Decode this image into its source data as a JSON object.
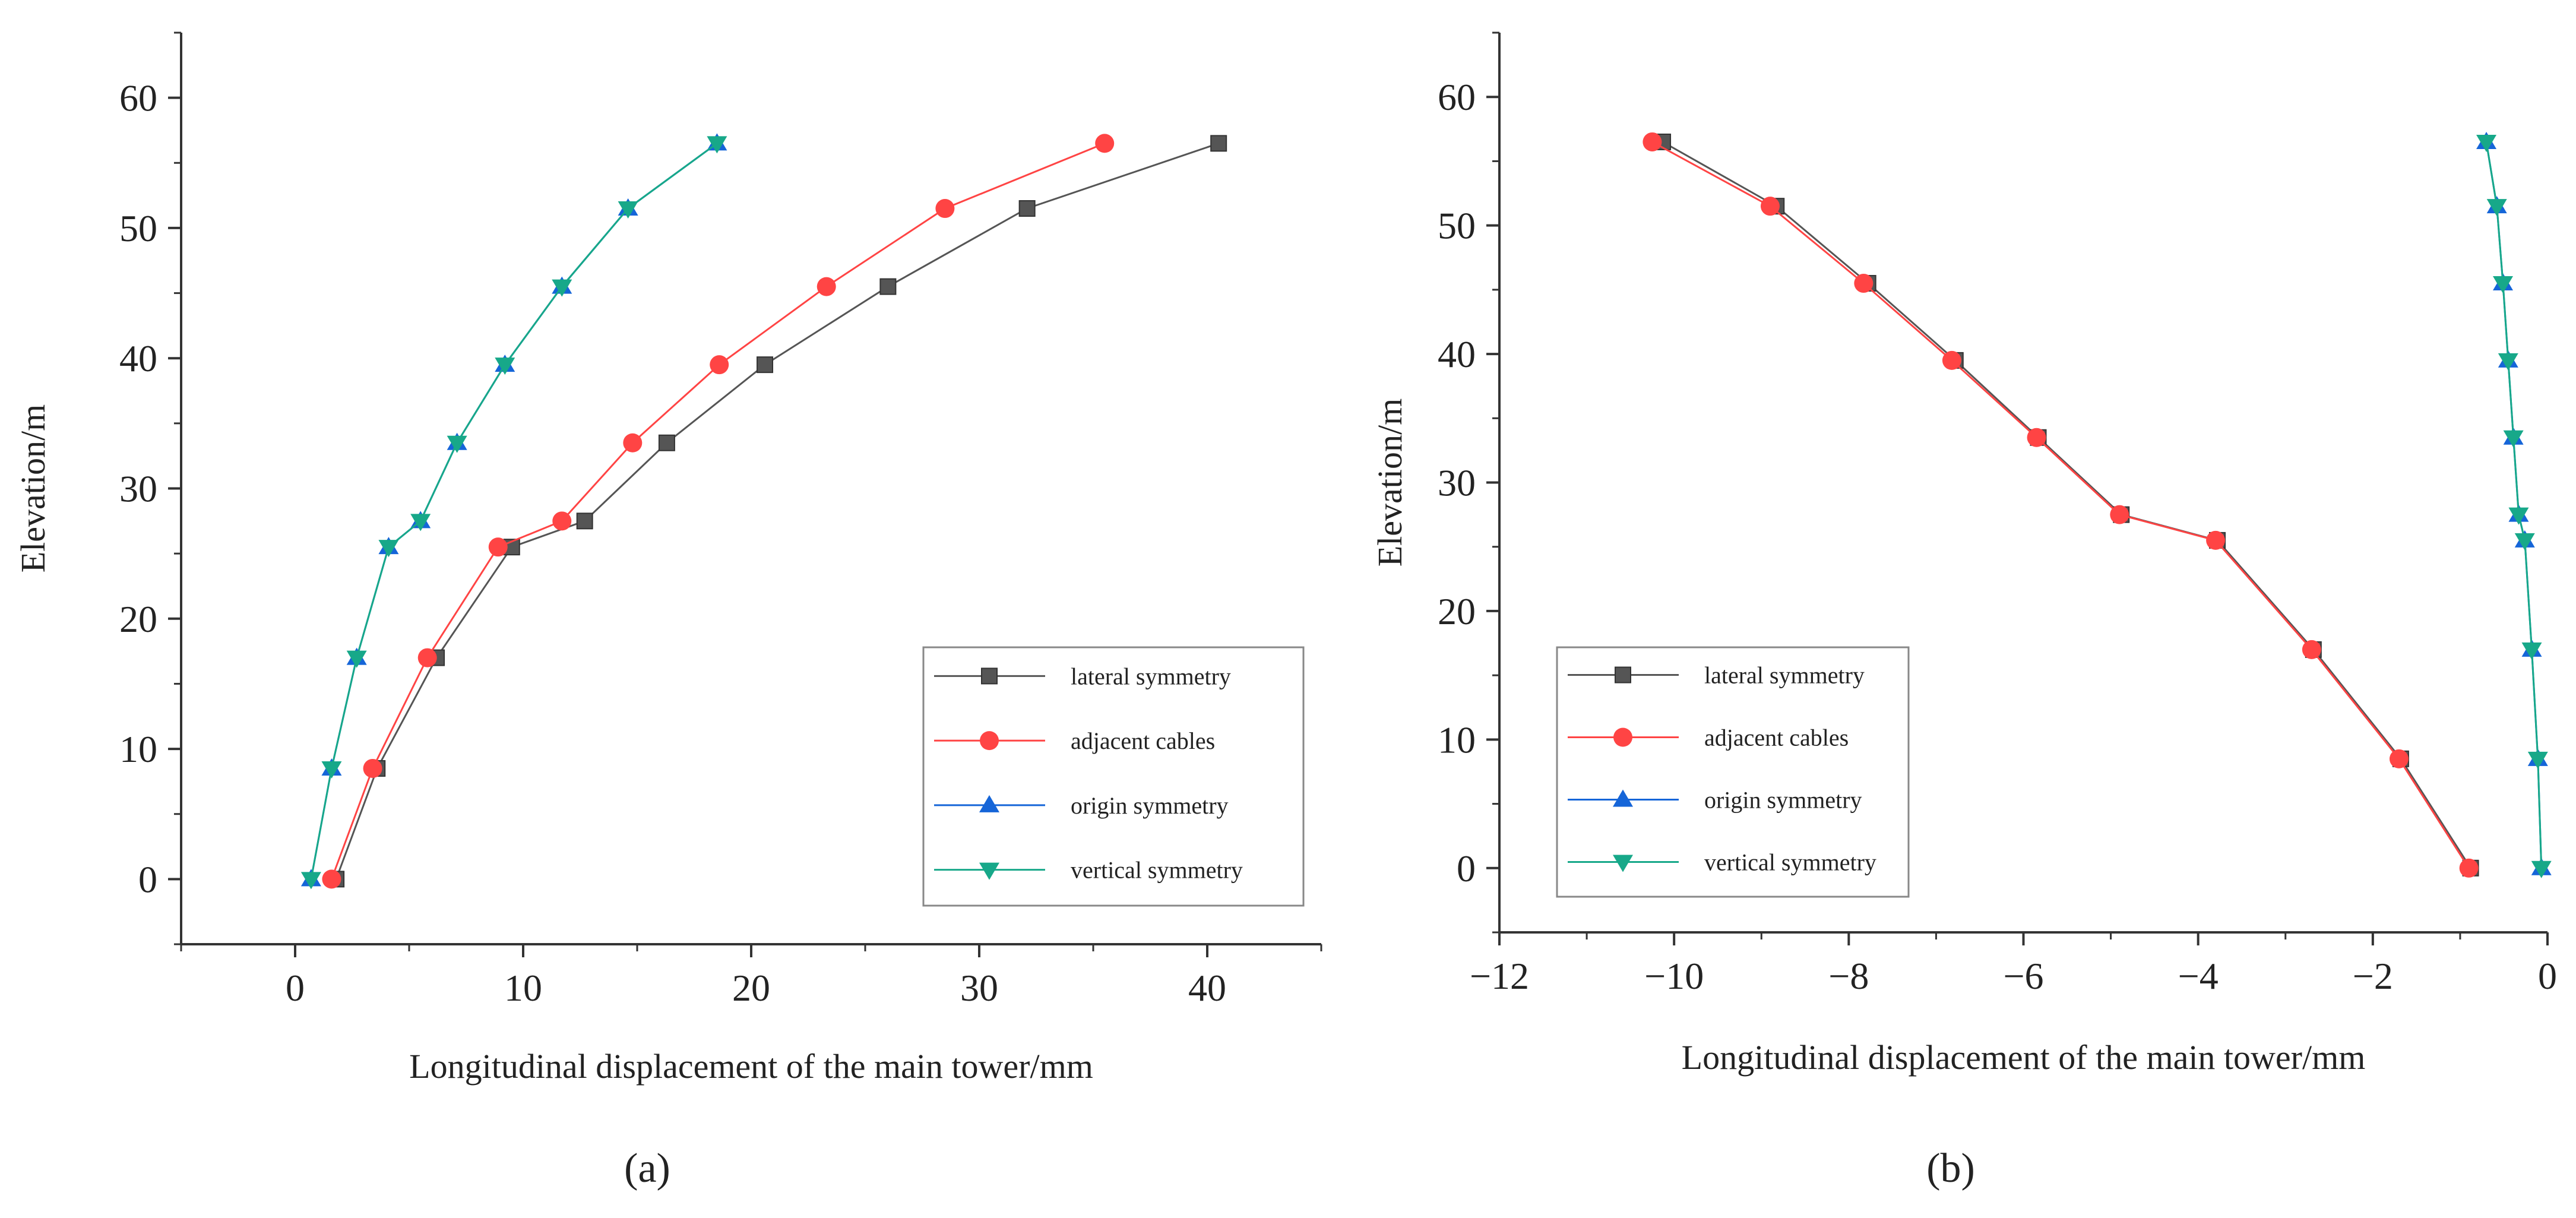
{
  "figure": {
    "panels": [
      "(a)",
      "(b)"
    ]
  },
  "colors": {
    "lateral_symmetry": "#555555",
    "adjacent_cables": "#ff4444",
    "origin_symmetry": "#1565d8",
    "vertical_symmetry": "#17a889",
    "axis": "#333333"
  },
  "chart_data": [
    {
      "type": "line",
      "panel": "a",
      "xlabel": "Longitudinal displacement of the main tower/mm",
      "ylabel": "Elevation/m",
      "xlim": [
        -5,
        45
      ],
      "ylim": [
        -5,
        65
      ],
      "xticks": [
        0,
        10,
        20,
        30,
        40
      ],
      "yticks": [
        0,
        10,
        20,
        30,
        40,
        50,
        60
      ],
      "legend_position": "bottom-right",
      "series": [
        {
          "name": "lateral symmetry",
          "marker": "square",
          "points": [
            [
              1.8,
              0
            ],
            [
              3.6,
              8.5
            ],
            [
              6.2,
              17
            ],
            [
              9.5,
              25.5
            ],
            [
              12.7,
              27.5
            ],
            [
              16.3,
              33.5
            ],
            [
              20.6,
              39.5
            ],
            [
              26.0,
              45.5
            ],
            [
              32.1,
              51.5
            ],
            [
              40.5,
              56.5
            ]
          ]
        },
        {
          "name": "adjacent cables",
          "marker": "circle",
          "points": [
            [
              1.6,
              0
            ],
            [
              3.4,
              8.5
            ],
            [
              5.8,
              17
            ],
            [
              8.9,
              25.5
            ],
            [
              11.7,
              27.5
            ],
            [
              14.8,
              33.5
            ],
            [
              18.6,
              39.5
            ],
            [
              23.3,
              45.5
            ],
            [
              28.5,
              51.5
            ],
            [
              35.5,
              56.5
            ]
          ]
        },
        {
          "name": "origin symmetry",
          "marker": "triangle-up",
          "points": [
            [
              0.7,
              0
            ],
            [
              1.6,
              8.5
            ],
            [
              2.7,
              17
            ],
            [
              4.1,
              25.5
            ],
            [
              5.5,
              27.5
            ],
            [
              7.1,
              33.5
            ],
            [
              9.2,
              39.5
            ],
            [
              11.7,
              45.5
            ],
            [
              14.6,
              51.5
            ],
            [
              18.5,
              56.5
            ]
          ]
        },
        {
          "name": "vertical symmetry",
          "marker": "triangle-down",
          "points": [
            [
              0.7,
              0
            ],
            [
              1.6,
              8.5
            ],
            [
              2.7,
              17
            ],
            [
              4.1,
              25.5
            ],
            [
              5.5,
              27.5
            ],
            [
              7.1,
              33.5
            ],
            [
              9.2,
              39.5
            ],
            [
              11.7,
              45.5
            ],
            [
              14.6,
              51.5
            ],
            [
              18.5,
              56.5
            ]
          ]
        }
      ]
    },
    {
      "type": "line",
      "panel": "b",
      "xlabel": "Longitudinal displacement of the main tower/mm",
      "ylabel": "Elevation/m",
      "xlim": [
        -12,
        0
      ],
      "ylim": [
        -5,
        65
      ],
      "xticks": [
        -12,
        -10,
        -8,
        -6,
        -4,
        -2,
        0
      ],
      "xtick_labels": [
        "−12",
        "−10",
        "−8",
        "−6",
        "−4",
        "−2",
        "0"
      ],
      "yticks": [
        0,
        10,
        20,
        30,
        40,
        50,
        60
      ],
      "legend_position": "bottom-left",
      "series": [
        {
          "name": "lateral symmetry",
          "marker": "square",
          "points": [
            [
              -0.88,
              0
            ],
            [
              -1.68,
              8.5
            ],
            [
              -2.68,
              17
            ],
            [
              -3.78,
              25.5
            ],
            [
              -4.88,
              27.5
            ],
            [
              -5.83,
              33.5
            ],
            [
              -6.78,
              39.5
            ],
            [
              -7.78,
              45.5
            ],
            [
              -8.83,
              51.5
            ],
            [
              -10.13,
              56.5
            ]
          ]
        },
        {
          "name": "adjacent cables",
          "marker": "circle",
          "points": [
            [
              -0.9,
              0
            ],
            [
              -1.7,
              8.5
            ],
            [
              -2.7,
              17
            ],
            [
              -3.8,
              25.5
            ],
            [
              -4.9,
              27.5
            ],
            [
              -5.85,
              33.5
            ],
            [
              -6.82,
              39.5
            ],
            [
              -7.83,
              45.5
            ],
            [
              -8.9,
              51.5
            ],
            [
              -10.25,
              56.5
            ]
          ]
        },
        {
          "name": "origin symmetry",
          "marker": "triangle-up",
          "points": [
            [
              -0.07,
              0
            ],
            [
              -0.11,
              8.5
            ],
            [
              -0.18,
              17
            ],
            [
              -0.26,
              25.5
            ],
            [
              -0.33,
              27.5
            ],
            [
              -0.39,
              33.5
            ],
            [
              -0.45,
              39.5
            ],
            [
              -0.51,
              45.5
            ],
            [
              -0.58,
              51.5
            ],
            [
              -0.7,
              56.5
            ]
          ]
        },
        {
          "name": "vertical symmetry",
          "marker": "triangle-down",
          "points": [
            [
              -0.07,
              0
            ],
            [
              -0.11,
              8.5
            ],
            [
              -0.18,
              17
            ],
            [
              -0.26,
              25.5
            ],
            [
              -0.33,
              27.5
            ],
            [
              -0.39,
              33.5
            ],
            [
              -0.45,
              39.5
            ],
            [
              -0.51,
              45.5
            ],
            [
              -0.58,
              51.5
            ],
            [
              -0.7,
              56.5
            ]
          ]
        }
      ]
    }
  ]
}
